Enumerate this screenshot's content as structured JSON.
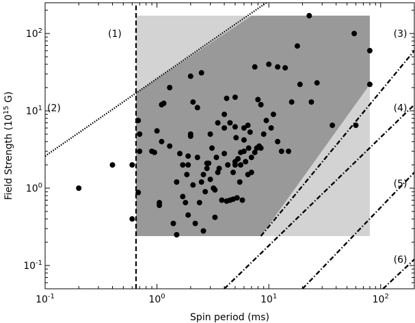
{
  "chart_data": {
    "type": "scatter",
    "xlabel": "Spin period (ms)",
    "ylabel": "Field Strength (10",
    "ylabel_exp": "15",
    "ylabel_suffix": " G)",
    "xscale": "log",
    "yscale": "log",
    "xlim": [
      0.1,
      200
    ],
    "ylim": [
      0.05,
      250
    ],
    "x_ticks": [
      {
        "value": 0.1,
        "base": "10",
        "exp": "-1"
      },
      {
        "value": 1,
        "base": "10",
        "exp": "0"
      },
      {
        "value": 10,
        "base": "10",
        "exp": "1"
      },
      {
        "value": 100,
        "base": "10",
        "exp": "2"
      }
    ],
    "y_ticks": [
      {
        "value": 0.1,
        "base": "10",
        "exp": "-1"
      },
      {
        "value": 1,
        "base": "10",
        "exp": "0"
      },
      {
        "value": 10,
        "base": "10",
        "exp": "1"
      },
      {
        "value": 100,
        "base": "10",
        "exp": "2"
      }
    ],
    "regions": [
      {
        "shade": "light",
        "color": "#d3d3d3",
        "polygon": [
          [
            0.65,
            0.24
          ],
          [
            80,
            0.24
          ],
          [
            80,
            170
          ],
          [
            0.65,
            170
          ]
        ]
      },
      {
        "shade": "dark",
        "color": "#999999",
        "polygon": [
          [
            0.65,
            0.24
          ],
          [
            8.5,
            0.24
          ],
          [
            80,
            22
          ],
          [
            80,
            170
          ],
          [
            7,
            170
          ],
          [
            0.65,
            17
          ]
        ]
      }
    ],
    "lines": [
      {
        "label": "(1)",
        "style": "dashed",
        "points": [
          [
            0.65,
            0.05
          ],
          [
            0.65,
            250
          ]
        ]
      },
      {
        "label": "(2)",
        "style": "dotted",
        "points": [
          [
            0.1,
            2.6
          ],
          [
            9.5,
            250
          ]
        ]
      },
      {
        "label": "(3)",
        "style": "dashdot",
        "points": [
          [
            8.5,
            0.24
          ],
          [
            200,
            60
          ]
        ]
      },
      {
        "label": "(4)",
        "style": "dashdot",
        "points": [
          [
            4,
            0.05
          ],
          [
            200,
            12
          ]
        ]
      },
      {
        "label": "(5)",
        "style": "dashdot",
        "points": [
          [
            20,
            0.05
          ],
          [
            200,
            1.6
          ]
        ]
      },
      {
        "label": "(6)",
        "style": "dashdot",
        "points": [
          [
            105,
            0.05
          ],
          [
            200,
            0.12
          ]
        ]
      }
    ],
    "annotations": [
      {
        "text": "(1)",
        "x": 0.42,
        "y": 100
      },
      {
        "text": "(2)",
        "x": 0.12,
        "y": 11
      },
      {
        "text": "(3)",
        "x": 150,
        "y": 100
      },
      {
        "text": "(4)",
        "x": 150,
        "y": 11
      },
      {
        "text": "(5)",
        "x": 150,
        "y": 1.15
      },
      {
        "text": "(6)",
        "x": 150,
        "y": 0.12
      }
    ],
    "points": [
      [
        0.2,
        1.0
      ],
      [
        0.4,
        2.0
      ],
      [
        0.6,
        2.0
      ],
      [
        0.6,
        0.4
      ],
      [
        0.68,
        7.5
      ],
      [
        0.7,
        5.0
      ],
      [
        0.7,
        3.0
      ],
      [
        0.68,
        0.88
      ],
      [
        0.9,
        3.0
      ],
      [
        0.95,
        2.9
      ],
      [
        1.0,
        5.5
      ],
      [
        1.05,
        0.65
      ],
      [
        1.05,
        0.6
      ],
      [
        1.1,
        12.0
      ],
      [
        1.15,
        12.5
      ],
      [
        1.1,
        4.0
      ],
      [
        1.3,
        20.0
      ],
      [
        1.3,
        3.5
      ],
      [
        1.4,
        0.35
      ],
      [
        1.5,
        1.2
      ],
      [
        1.6,
        2.8
      ],
      [
        1.5,
        0.25
      ],
      [
        1.7,
        2.0
      ],
      [
        1.7,
        0.78
      ],
      [
        1.8,
        0.65
      ],
      [
        1.9,
        0.45
      ],
      [
        1.9,
        2.6
      ],
      [
        1.9,
        2.0
      ],
      [
        1.85,
        1.5
      ],
      [
        2.0,
        28.0
      ],
      [
        2.0,
        5.0
      ],
      [
        2.0,
        4.7
      ],
      [
        2.1,
        13.0
      ],
      [
        2.1,
        1.1
      ],
      [
        2.2,
        0.35
      ],
      [
        2.3,
        11.0
      ],
      [
        2.3,
        2.5
      ],
      [
        2.4,
        0.65
      ],
      [
        2.5,
        31.0
      ],
      [
        2.5,
        1.2
      ],
      [
        2.6,
        1.5
      ],
      [
        2.6,
        0.28
      ],
      [
        2.7,
        0.9
      ],
      [
        2.8,
        2.1
      ],
      [
        2.8,
        1.8
      ],
      [
        2.9,
        2.1
      ],
      [
        3.0,
        5.0
      ],
      [
        3.0,
        1.3
      ],
      [
        3.1,
        3.3
      ],
      [
        3.2,
        1.0
      ],
      [
        3.3,
        0.95
      ],
      [
        3.3,
        0.42
      ],
      [
        3.4,
        2.5
      ],
      [
        3.5,
        7.0
      ],
      [
        3.5,
        1.6
      ],
      [
        3.6,
        1.8
      ],
      [
        3.8,
        0.7
      ],
      [
        4.0,
        9.0
      ],
      [
        4.0,
        6.0
      ],
      [
        4.0,
        2.8
      ],
      [
        4.2,
        14.5
      ],
      [
        4.2,
        0.68
      ],
      [
        4.3,
        2.0
      ],
      [
        4.5,
        7.0
      ],
      [
        4.5,
        0.7
      ],
      [
        4.8,
        1.6
      ],
      [
        4.8,
        0.72
      ],
      [
        5.0,
        15.0
      ],
      [
        5.0,
        6.2
      ],
      [
        5.0,
        2.2
      ],
      [
        5.0,
        2.0
      ],
      [
        5.1,
        4.5
      ],
      [
        5.2,
        0.75
      ],
      [
        5.3,
        2.4
      ],
      [
        5.5,
        1.2
      ],
      [
        5.6,
        2.9
      ],
      [
        5.6,
        2.0
      ],
      [
        5.8,
        0.7
      ],
      [
        6.0,
        6.0
      ],
      [
        6.0,
        4.2
      ],
      [
        6.0,
        3.0
      ],
      [
        6.2,
        2.2
      ],
      [
        6.5,
        6.5
      ],
      [
        6.5,
        1.5
      ],
      [
        6.6,
        3.3
      ],
      [
        6.8,
        5.3
      ],
      [
        7.0,
        2.5
      ],
      [
        7.0,
        1.6
      ],
      [
        7.5,
        37.0
      ],
      [
        7.5,
        2.9
      ],
      [
        7.8,
        3.3
      ],
      [
        8.0,
        14.0
      ],
      [
        8.2,
        3.5
      ],
      [
        8.5,
        12.0
      ],
      [
        8.5,
        3.3
      ],
      [
        9.0,
        5.0
      ],
      [
        9.5,
        7.5
      ],
      [
        10.0,
        40.0
      ],
      [
        10.5,
        6.0
      ],
      [
        11.0,
        9.0
      ],
      [
        12.0,
        37.0
      ],
      [
        12.0,
        4.0
      ],
      [
        13.0,
        3.0
      ],
      [
        14.0,
        36.0
      ],
      [
        15.0,
        3.0
      ],
      [
        16.0,
        13.0
      ],
      [
        18.0,
        69.0
      ],
      [
        19.0,
        22.0
      ],
      [
        23.0,
        170.0
      ],
      [
        24.0,
        13.0
      ],
      [
        27.0,
        23.0
      ],
      [
        37.0,
        6.5
      ],
      [
        58.0,
        100.0
      ],
      [
        60.0,
        6.5
      ],
      [
        80.0,
        60.0
      ],
      [
        80.0,
        22.0
      ]
    ]
  }
}
